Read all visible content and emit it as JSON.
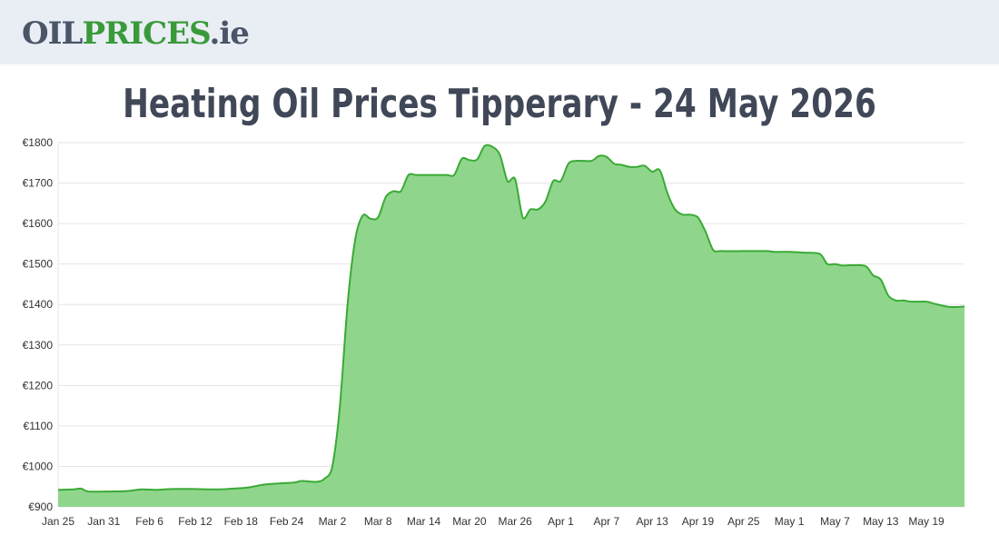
{
  "header": {
    "logo": {
      "part1": "OIL",
      "part2": "PRICES",
      "part3": ".ie"
    }
  },
  "page_title": "Heating Oil Prices Tipperary - 24 May 2026",
  "colors": {
    "line": "#3aaa35",
    "fill": "#8fd68c",
    "grid": "#e5e5e5",
    "axis": "#999999",
    "logo_dark": "#4a5568",
    "logo_green": "#3a9a3a"
  },
  "chart_data": {
    "type": "area",
    "title": "",
    "xlabel": "",
    "ylabel": "",
    "ylim": [
      900,
      1800
    ],
    "y_ticks": [
      {
        "value": 900,
        "label": "€900"
      },
      {
        "value": 1000,
        "label": "€1000"
      },
      {
        "value": 1100,
        "label": "€1100"
      },
      {
        "value": 1200,
        "label": "€1200"
      },
      {
        "value": 1300,
        "label": "€1300"
      },
      {
        "value": 1400,
        "label": "€1400"
      },
      {
        "value": 1500,
        "label": "€1500"
      },
      {
        "value": 1600,
        "label": "€1600"
      },
      {
        "value": 1700,
        "label": "€1700"
      },
      {
        "value": 1800,
        "label": "€1800"
      }
    ],
    "x_ticks": [
      {
        "date": "2026-01-25",
        "label": "Jan 25"
      },
      {
        "date": "2026-01-31",
        "label": "Jan 31"
      },
      {
        "date": "2026-02-06",
        "label": "Feb 6"
      },
      {
        "date": "2026-02-12",
        "label": "Feb 12"
      },
      {
        "date": "2026-02-18",
        "label": "Feb 18"
      },
      {
        "date": "2026-02-24",
        "label": "Feb 24"
      },
      {
        "date": "2026-03-02",
        "label": "Mar 2"
      },
      {
        "date": "2026-03-08",
        "label": "Mar 8"
      },
      {
        "date": "2026-03-14",
        "label": "Mar 14"
      },
      {
        "date": "2026-03-20",
        "label": "Mar 20"
      },
      {
        "date": "2026-03-26",
        "label": "Mar 26"
      },
      {
        "date": "2026-04-01",
        "label": "Apr 1"
      },
      {
        "date": "2026-04-07",
        "label": "Apr 7"
      },
      {
        "date": "2026-04-13",
        "label": "Apr 13"
      },
      {
        "date": "2026-04-19",
        "label": "Apr 19"
      },
      {
        "date": "2026-04-25",
        "label": "Apr 25"
      },
      {
        "date": "2026-05-01",
        "label": "May 1"
      },
      {
        "date": "2026-05-07",
        "label": "May 7"
      },
      {
        "date": "2026-05-13",
        "label": "May 13"
      },
      {
        "date": "2026-05-19",
        "label": "May 19"
      }
    ],
    "x_range": [
      "2026-01-25",
      "2026-05-24"
    ],
    "grid": true,
    "legend": "none",
    "series": [
      {
        "points": [
          [
            "2026-01-25",
            942
          ],
          [
            "2026-01-27",
            943
          ],
          [
            "2026-01-28",
            945
          ],
          [
            "2026-01-29",
            938
          ],
          [
            "2026-02-01",
            938
          ],
          [
            "2026-02-03",
            939
          ],
          [
            "2026-02-05",
            943
          ],
          [
            "2026-02-07",
            942
          ],
          [
            "2026-02-09",
            944
          ],
          [
            "2026-02-12",
            944
          ],
          [
            "2026-02-15",
            943
          ],
          [
            "2026-02-17",
            945
          ],
          [
            "2026-02-19",
            948
          ],
          [
            "2026-02-21",
            955
          ],
          [
            "2026-02-23",
            958
          ],
          [
            "2026-02-25",
            960
          ],
          [
            "2026-02-26",
            964
          ],
          [
            "2026-02-28",
            962
          ],
          [
            "2026-03-01",
            970
          ],
          [
            "2026-03-02",
            1000
          ],
          [
            "2026-03-03",
            1150
          ],
          [
            "2026-03-04",
            1400
          ],
          [
            "2026-03-05",
            1560
          ],
          [
            "2026-03-06",
            1620
          ],
          [
            "2026-03-07",
            1612
          ],
          [
            "2026-03-08",
            1615
          ],
          [
            "2026-03-09",
            1665
          ],
          [
            "2026-03-10",
            1680
          ],
          [
            "2026-03-11",
            1680
          ],
          [
            "2026-03-12",
            1720
          ],
          [
            "2026-03-13",
            1720
          ],
          [
            "2026-03-15",
            1720
          ],
          [
            "2026-03-17",
            1720
          ],
          [
            "2026-03-18",
            1720
          ],
          [
            "2026-03-19",
            1760
          ],
          [
            "2026-03-20",
            1757
          ],
          [
            "2026-03-21",
            1758
          ],
          [
            "2026-03-22",
            1792
          ],
          [
            "2026-03-23",
            1790
          ],
          [
            "2026-03-24",
            1770
          ],
          [
            "2026-03-25",
            1705
          ],
          [
            "2026-03-26",
            1710
          ],
          [
            "2026-03-27",
            1615
          ],
          [
            "2026-03-28",
            1635
          ],
          [
            "2026-03-29",
            1635
          ],
          [
            "2026-03-30",
            1655
          ],
          [
            "2026-03-31",
            1705
          ],
          [
            "2026-04-01",
            1705
          ],
          [
            "2026-04-02",
            1748
          ],
          [
            "2026-04-03",
            1755
          ],
          [
            "2026-04-05",
            1755
          ],
          [
            "2026-04-06",
            1767
          ],
          [
            "2026-04-07",
            1765
          ],
          [
            "2026-04-08",
            1748
          ],
          [
            "2026-04-09",
            1745
          ],
          [
            "2026-04-10",
            1740
          ],
          [
            "2026-04-11",
            1740
          ],
          [
            "2026-04-12",
            1743
          ],
          [
            "2026-04-13",
            1728
          ],
          [
            "2026-04-14",
            1732
          ],
          [
            "2026-04-15",
            1675
          ],
          [
            "2026-04-16",
            1635
          ],
          [
            "2026-04-17",
            1622
          ],
          [
            "2026-04-18",
            1622
          ],
          [
            "2026-04-19",
            1615
          ],
          [
            "2026-04-20",
            1580
          ],
          [
            "2026-04-21",
            1535
          ],
          [
            "2026-04-22",
            1532
          ],
          [
            "2026-04-25",
            1532
          ],
          [
            "2026-04-28",
            1532
          ],
          [
            "2026-04-29",
            1530
          ],
          [
            "2026-05-01",
            1530
          ],
          [
            "2026-05-03",
            1528
          ],
          [
            "2026-05-05",
            1525
          ],
          [
            "2026-05-06",
            1500
          ],
          [
            "2026-05-07",
            1500
          ],
          [
            "2026-05-08",
            1496
          ],
          [
            "2026-05-09",
            1497
          ],
          [
            "2026-05-11",
            1495
          ],
          [
            "2026-05-12",
            1472
          ],
          [
            "2026-05-13",
            1462
          ],
          [
            "2026-05-14",
            1422
          ],
          [
            "2026-05-15",
            1410
          ],
          [
            "2026-05-16",
            1410
          ],
          [
            "2026-05-17",
            1407
          ],
          [
            "2026-05-19",
            1407
          ],
          [
            "2026-05-20",
            1402
          ],
          [
            "2026-05-22",
            1394
          ],
          [
            "2026-05-24",
            1395
          ]
        ]
      }
    ]
  }
}
